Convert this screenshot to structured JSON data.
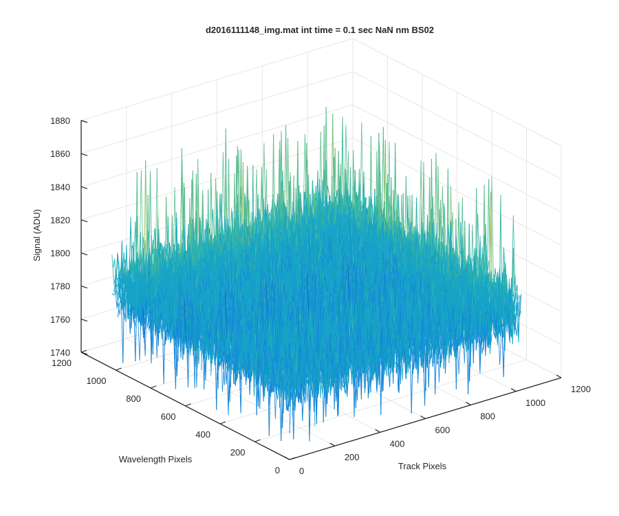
{
  "chart_data": {
    "type": "surface",
    "title": "d2016111148_img.mat int time = 0.1 sec  NaN nm BS02",
    "xlabel": "Track Pixels",
    "ylabel": "Wavelength Pixels",
    "zlabel": "Signal (ADU)",
    "xlim": [
      0,
      1200
    ],
    "ylim": [
      0,
      1200
    ],
    "zlim": [
      1740,
      1880
    ],
    "x_ticks": [
      "0",
      "200",
      "400",
      "600",
      "800",
      "1000",
      "1200"
    ],
    "y_ticks": [
      "0",
      "200",
      "400",
      "600",
      "800",
      "1000",
      "1200"
    ],
    "z_ticks": [
      "1740",
      "1760",
      "1780",
      "1800",
      "1820",
      "1840",
      "1860",
      "1880"
    ],
    "grid": true,
    "colormap": "parula",
    "surface_extent": {
      "x": [
        1,
        1024
      ],
      "y": [
        1,
        1024
      ]
    },
    "signal_typical_range": [
      1765,
      1815
    ],
    "signal_min_approx": 1745,
    "signal_max_approx": 1865,
    "grid_color": "#e6e6e6",
    "axis_color": "#262626",
    "colors": [
      "#0a5fd4",
      "#1586d9",
      "#17a2c8",
      "#2bb3b0",
      "#5cbd8f",
      "#a4c55c",
      "#d8c93e"
    ]
  }
}
